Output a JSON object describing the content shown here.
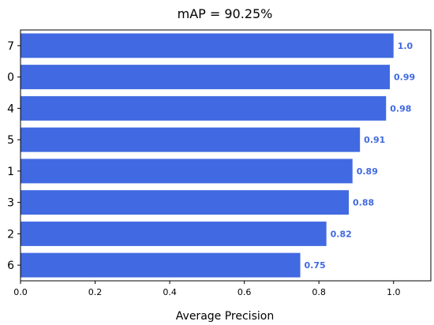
{
  "chart_data": {
    "type": "bar",
    "orientation": "horizontal",
    "title": "mAP = 90.25%",
    "xlabel": "Average Precision",
    "ylabel": "",
    "categories": [
      "7",
      "0",
      "4",
      "5",
      "1",
      "3",
      "2",
      "6"
    ],
    "values": [
      1.0,
      0.99,
      0.98,
      0.91,
      0.89,
      0.88,
      0.82,
      0.75
    ],
    "value_labels": [
      "1.0",
      "0.99",
      "0.98",
      "0.91",
      "0.89",
      "0.88",
      "0.82",
      "0.75"
    ],
    "xlim": [
      0.0,
      1.1
    ],
    "xticks": [
      "0.0",
      "0.2",
      "0.4",
      "0.6",
      "0.8",
      "1.0"
    ],
    "grid": false,
    "legend": "none",
    "colors": {
      "bar": "#4169e1",
      "label": "#4169e1"
    }
  }
}
